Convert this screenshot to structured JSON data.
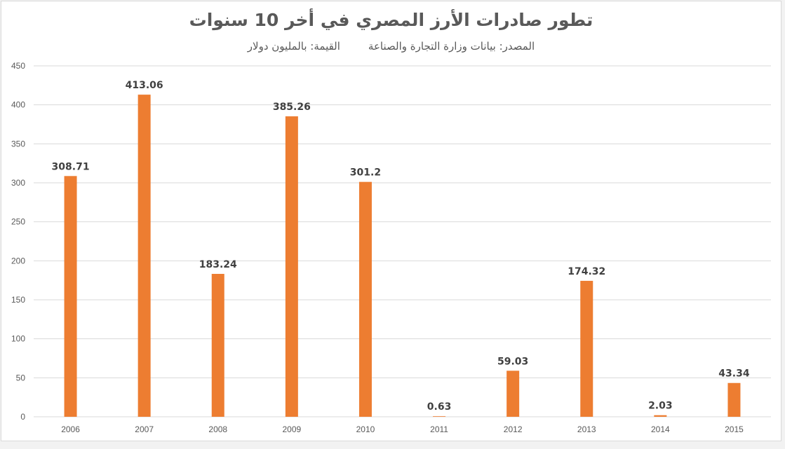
{
  "chart_data": {
    "type": "bar",
    "title": "تطور صادرات الأرز المصري في أخر 10 سنوات",
    "subtitle_source": "المصدر: بيانات وزارة التجارة والصناعة",
    "subtitle_unit": "القيمة: بالمليون دولار",
    "categories": [
      "2006",
      "2007",
      "2008",
      "2009",
      "2010",
      "2011",
      "2012",
      "2013",
      "2014",
      "2015"
    ],
    "values": [
      308.71,
      413.06,
      183.24,
      385.26,
      301.2,
      0.63,
      59.03,
      174.32,
      2.03,
      43.34
    ],
    "data_labels": [
      "308.71",
      "413.06",
      "183.24",
      "385.26",
      "301.2",
      "0.63",
      "59.03",
      "174.32",
      "2.03",
      "43.34"
    ],
    "y_ticks": [
      "0",
      "50",
      "100",
      "150",
      "200",
      "250",
      "300",
      "350",
      "400",
      "450"
    ],
    "ylim": [
      0,
      450
    ],
    "grid": true,
    "legend": "none",
    "bar_color": "#ed7d31",
    "grid_color": "#d9d9d9",
    "text_color": "#595959"
  }
}
